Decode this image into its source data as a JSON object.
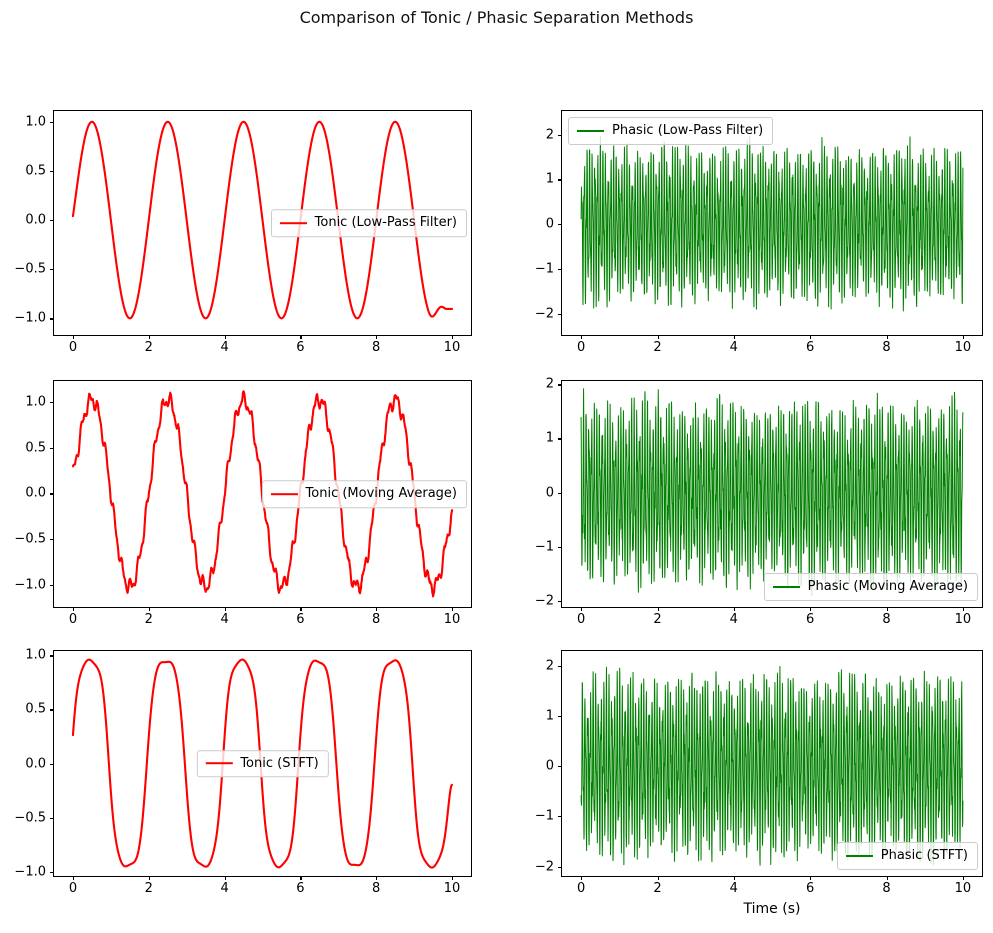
{
  "title": "Comparison of Tonic / Phasic Separation Methods",
  "xlabel": "Time (s)",
  "colors": {
    "tonic_line": "#ff0000",
    "phasic_line": "#008000",
    "background": "#ffffff",
    "spine": "#000000",
    "legend_border": "#cccccc",
    "legend_background": "rgba(255,255,255,0.8)"
  },
  "chart_data": [
    {
      "index": 0,
      "type": "line",
      "position": "row 1, col 1",
      "legend": "Tonic (Low-Pass Filter)",
      "legend_loc": "center right",
      "color": "#ff0000",
      "line_width": 2.1,
      "xlim": [
        -0.5,
        10.5
      ],
      "ylim": [
        -1.17,
        1.11
      ],
      "x_tick_values": [
        0,
        2,
        4,
        6,
        8,
        10
      ],
      "x_ticks": [
        "0",
        "2",
        "4",
        "6",
        "8",
        "10"
      ],
      "y_tick_values": [
        -1.0,
        -0.5,
        0.0,
        0.5,
        1.0
      ],
      "y_ticks": [
        "−1.0",
        "−0.5",
        "0.0",
        "0.5",
        "1.0"
      ],
      "signal": {
        "kind": "tonic_lpf",
        "description": "Smooth 0.5 Hz sine, amplitude 1.0, 5 cycles over 0-10 s; peaks at t=0.5,2.5,4.5,6.5,8.5; troughs at 1.5,3.5,5.5,7.5; starts at 0.04; filter edge effect flattens tail to -0.9 after t=9.5",
        "freq_hz": 0.5,
        "amplitude": 1.0,
        "start_value": 0.04,
        "end_value": -0.905,
        "duration_s": 10,
        "n_points": 700
      }
    },
    {
      "index": 1,
      "type": "line",
      "position": "row 1, col 2",
      "legend": "Phasic (Low-Pass Filter)",
      "legend_loc": "upper left",
      "color": "#008000",
      "line_width": 1.0,
      "xlim": [
        -0.5,
        10.5
      ],
      "ylim": [
        -2.48,
        2.53
      ],
      "x_tick_values": [
        0,
        2,
        4,
        6,
        8,
        10
      ],
      "x_ticks": [
        "0",
        "2",
        "4",
        "6",
        "8",
        "10"
      ],
      "y_tick_values": [
        -2,
        -1,
        0,
        1,
        2
      ],
      "y_ticks": [
        "−2",
        "−1",
        "0",
        "1",
        "2"
      ],
      "signal": {
        "kind": "phasic",
        "description": "Dense high-frequency residual oscillation, band about ±1.8 with extremes near -2.07 and +2.0; brief onset ramp at t=0 and large end spike reaching about 2.4 at t≈9.95",
        "main_freq_hz": 14.3,
        "second_freq_hz": 31.7,
        "band_amplitude": 1.8,
        "min": -2.07,
        "max": 2.39,
        "duration_s": 10,
        "n_points": 2000,
        "seed": 7,
        "phase": 0.4,
        "scale": 1.0,
        "start_ramp": true,
        "end_spike": true
      }
    },
    {
      "index": 2,
      "type": "line",
      "position": "row 2, col 1",
      "legend": "Tonic (Moving Average)",
      "legend_loc": "center right",
      "color": "#ff0000",
      "line_width": 2.1,
      "xlim": [
        -0.5,
        10.5
      ],
      "ylim": [
        -1.24,
        1.225
      ],
      "x_tick_values": [
        0,
        2,
        4,
        6,
        8,
        10
      ],
      "x_ticks": [
        "0",
        "2",
        "4",
        "6",
        "8",
        "10"
      ],
      "y_tick_values": [
        -1.0,
        -0.5,
        0.0,
        0.5,
        1.0
      ],
      "y_ticks": [
        "−1.0",
        "−0.5",
        "0.0",
        "0.5",
        "1.0"
      ],
      "signal": {
        "kind": "tonic_ma",
        "description": "0.5 Hz sine carrying residual high-frequency ripple (jagged steps, ripple amplitude ≈0.08); peaks reach ≈1.1, troughs ≈-1.1; starts at ≈0.22 and ends at ≈-0.25 due to moving-average edge effects",
        "freq_hz": 0.5,
        "amplitude": 1.02,
        "ripple_amplitude": 0.08,
        "start_value": 0.22,
        "end_value": -0.25,
        "duration_s": 10,
        "n_points": 1100,
        "seed": 11
      }
    },
    {
      "index": 3,
      "type": "line",
      "position": "row 2, col 2",
      "legend": "Phasic (Moving Average)",
      "legend_loc": "lower right",
      "color": "#008000",
      "line_width": 1.0,
      "xlim": [
        -0.5,
        10.5
      ],
      "ylim": [
        -2.11,
        2.06
      ],
      "x_tick_values": [
        0,
        2,
        4,
        6,
        8,
        10
      ],
      "x_ticks": [
        "0",
        "2",
        "4",
        "6",
        "8",
        "10"
      ],
      "y_tick_values": [
        -2,
        -1,
        0,
        1,
        2
      ],
      "y_ticks": [
        "−2",
        "−1",
        "0",
        "1",
        "2"
      ],
      "signal": {
        "kind": "phasic",
        "description": "Dense high-frequency residual oscillation, band about ±1.8 with extremes near ±1.92; uniform envelope across 0-10 s",
        "main_freq_hz": 14.3,
        "second_freq_hz": 31.7,
        "band_amplitude": 1.8,
        "min": -1.92,
        "max": 1.92,
        "duration_s": 10,
        "n_points": 2000,
        "seed": 23,
        "phase": 2.1,
        "scale": 0.97,
        "start_ramp": false,
        "end_spike": false
      }
    },
    {
      "index": 4,
      "type": "line",
      "position": "row 3, col 1",
      "legend": "Tonic (STFT)",
      "legend_loc": "center",
      "color": "#ff0000",
      "line_width": 2.1,
      "xlim": [
        -0.5,
        10.5
      ],
      "ylim": [
        -1.04,
        1.04
      ],
      "x_tick_values": [
        0,
        2,
        4,
        6,
        8,
        10
      ],
      "x_ticks": [
        "0",
        "2",
        "4",
        "6",
        "8",
        "10"
      ],
      "y_tick_values": [
        -1.0,
        -0.5,
        0.0,
        0.5,
        1.0
      ],
      "y_ticks": [
        "−1.0",
        "−0.5",
        "0.0",
        "0.5",
        "1.0"
      ],
      "signal": {
        "kind": "tonic_stft",
        "description": "0.5 Hz wave with soft-clipped flat tops at ≈+0.95 and flat bottoms at ≈-0.93; 5 cycles; starts at ≈0.23 and ends rising to ≈-0.22",
        "freq_hz": 0.5,
        "flat_top": 0.95,
        "flat_bottom": -0.93,
        "start_value": 0.23,
        "end_value": -0.22,
        "duration_s": 10,
        "n_points": 800
      }
    },
    {
      "index": 5,
      "type": "line",
      "position": "row 3, col 2",
      "legend": "Phasic (STFT)",
      "legend_loc": "lower right",
      "color": "#008000",
      "line_width": 1.0,
      "xlim": [
        -0.5,
        10.5
      ],
      "ylim": [
        -2.19,
        2.29
      ],
      "x_tick_values": [
        0,
        2,
        4,
        6,
        8,
        10
      ],
      "x_ticks": [
        "0",
        "2",
        "4",
        "6",
        "8",
        "10"
      ],
      "y_tick_values": [
        -2,
        -1,
        0,
        1,
        2
      ],
      "y_ticks": [
        "−2",
        "−1",
        "0",
        "1",
        "2"
      ],
      "signal": {
        "kind": "phasic",
        "description": "Dense high-frequency residual oscillation, band about ±1.8 with extremes near -2.08 and +2.07; uniform envelope across 0-10 s",
        "main_freq_hz": 14.3,
        "second_freq_hz": 31.7,
        "band_amplitude": 1.8,
        "min": -2.08,
        "max": 2.07,
        "duration_s": 10,
        "n_points": 2000,
        "seed": 41,
        "phase": 4.7,
        "scale": 1.04,
        "start_ramp": false,
        "end_spike": false
      }
    }
  ]
}
